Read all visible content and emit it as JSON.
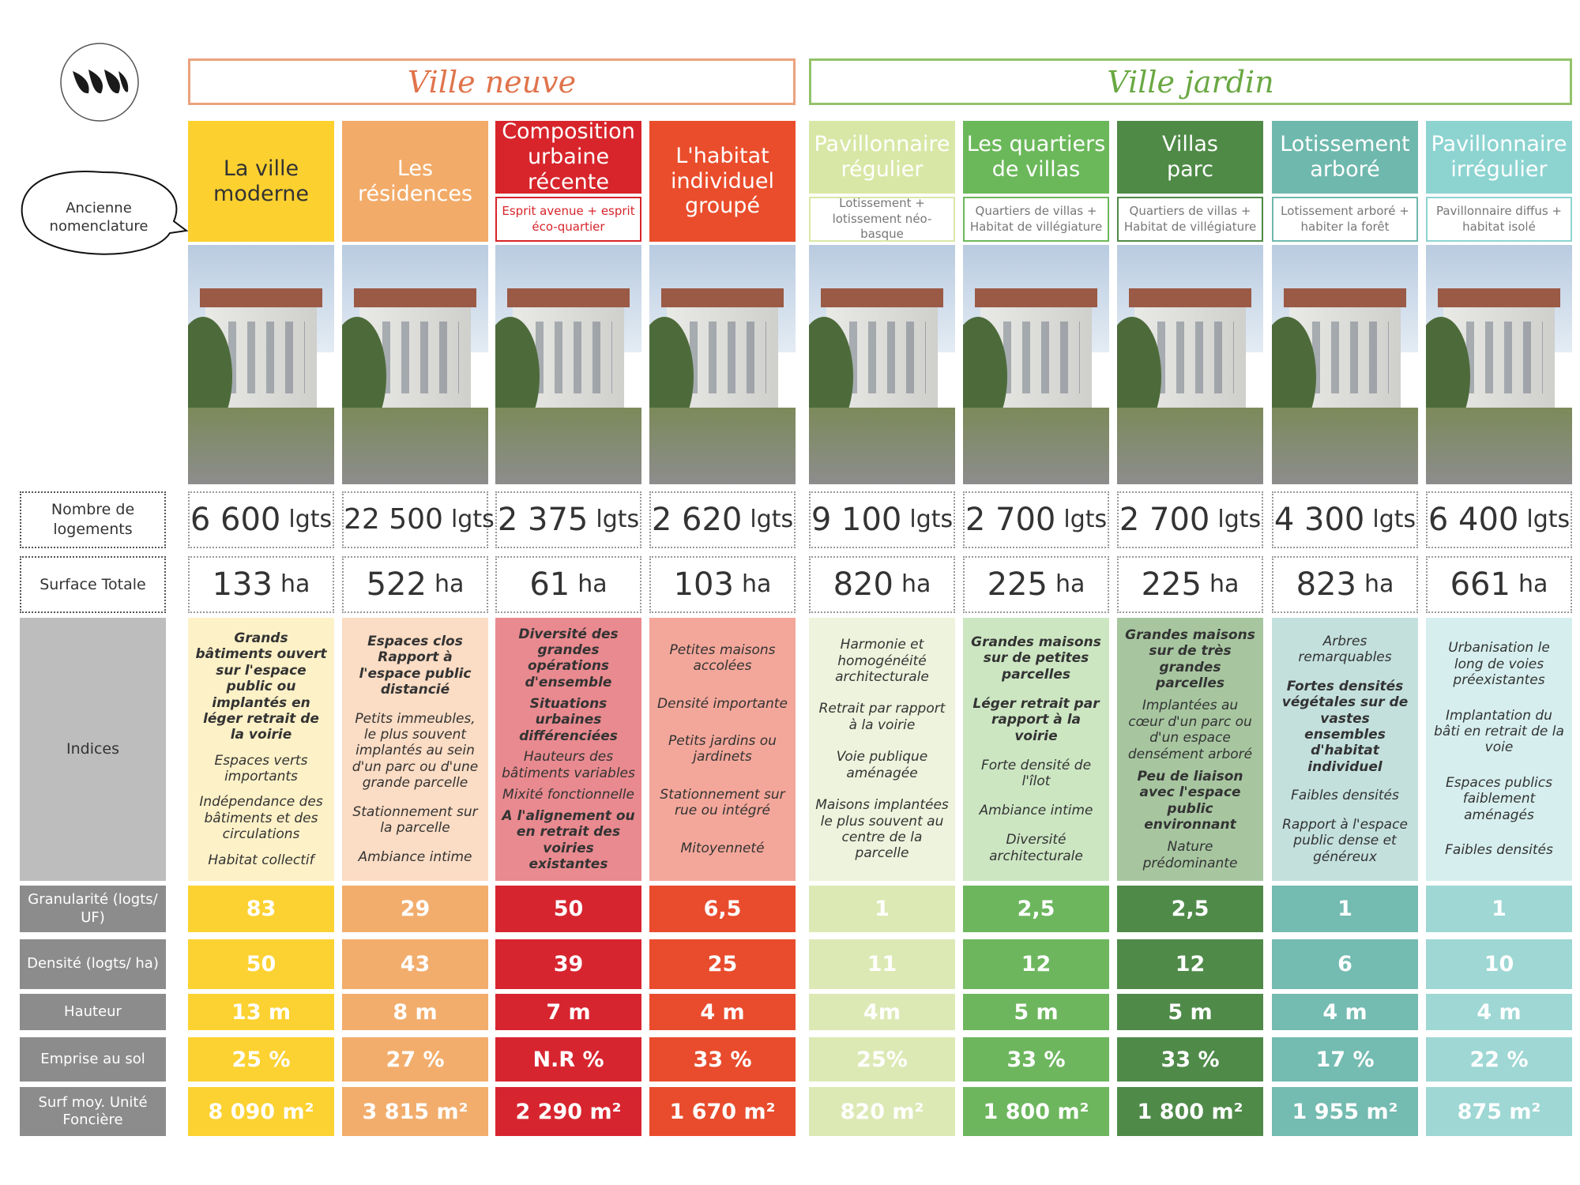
{
  "legend_bubble": "Ancienne nomenclature",
  "row_labels": [
    "Nombre de logements",
    "Surface Totale",
    "Indices",
    "Granularité (logts/ UF)",
    "Densité (logts/ ha)",
    "Hauteur",
    "Emprise au sol",
    "Surf moy. Unité Foncière"
  ],
  "groups": [
    {
      "title": "Ville neuve",
      "color": "#e0744c",
      "border": "#eba27e",
      "columns": [
        {
          "name": "La ville\nmoderne",
          "header_color": "#fcd12f",
          "name_color": "#333333",
          "light": "#fdf1c7",
          "metric_color": "#fcd232",
          "logements": "6 600",
          "logements_unit": "lgts",
          "surface": "133",
          "surface_unit": "ha",
          "indices": [
            {
              "text": "Grands bâtiments ouvert sur l'espace public ou implantés en léger retrait de la voirie",
              "bold": true
            },
            {
              "text": "Espaces verts importants",
              "bold": false
            },
            {
              "text": "Indépendance des bâtiments et des circulations",
              "bold": false
            },
            {
              "text": "Habitat collectif",
              "bold": false
            }
          ],
          "metrics": [
            "83",
            "50",
            "13 m",
            "25 %",
            "8 090 m²"
          ]
        },
        {
          "name": "Les\nrésidences",
          "header_color": "#f2ab68",
          "name_color": "#ffffff",
          "light": "#fbdcc4",
          "metric_color": "#f2ad6c",
          "logements": "22 500",
          "logements_unit": "lgts",
          "surface": "522",
          "surface_unit": "ha",
          "indices": [
            {
              "text": "Espaces clos Rapport à l'espace public distancié",
              "bold": true
            },
            {
              "text": "Petits immeubles, le plus souvent implantés au sein d'un parc ou d'une grande parcelle",
              "bold": false
            },
            {
              "text": "Stationnement sur la parcelle",
              "bold": false
            },
            {
              "text": "Ambiance intime",
              "bold": false
            }
          ],
          "metrics": [
            "29",
            "43",
            "8 m",
            "27 %",
            "3 815 m²"
          ]
        },
        {
          "name": "Composition\nurbaine\nrécente",
          "subtitle": "Esprit avenue + esprit éco-quartier",
          "header_color": "#d7252b",
          "name_color": "#ffffff",
          "light": "#e88a8f",
          "metric_color": "#d72530",
          "logements": "2 375",
          "logements_unit": "lgts",
          "surface": "61",
          "surface_unit": "ha",
          "indices": [
            {
              "text": "Diversité des grandes opérations d'ensemble",
              "bold": true
            },
            {
              "text": "Situations urbaines différenciées",
              "bold": true
            },
            {
              "text": "Hauteurs des bâtiments variables",
              "bold": false
            },
            {
              "text": "Mixité fonctionnelle",
              "bold": false
            },
            {
              "text": "A l'alignement ou en retrait des voiries existantes",
              "bold": true
            }
          ],
          "metrics": [
            "50",
            "39",
            "7 m",
            "N.R %",
            "2 290 m²"
          ]
        },
        {
          "name": "L'habitat\nindividuel\ngroupé",
          "header_color": "#ea4d2c",
          "name_color": "#ffffff",
          "light": "#f3a79a",
          "metric_color": "#e84c2d",
          "logements": "2 620",
          "logements_unit": "lgts",
          "surface": "103",
          "surface_unit": "ha",
          "indices": [
            {
              "text": "Petites maisons accolées",
              "bold": false
            },
            {
              "text": "Densité importante",
              "bold": false
            },
            {
              "text": "Petits jardins ou jardinets",
              "bold": false
            },
            {
              "text": "Stationnement sur rue ou intégré",
              "bold": false
            },
            {
              "text": "Mitoyenneté",
              "bold": false
            }
          ],
          "metrics": [
            "6,5",
            "25",
            "4 m",
            "33 %",
            "1 670 m²"
          ]
        }
      ]
    },
    {
      "title": "Ville jardin",
      "color": "#6aa843",
      "border": "#93c26a",
      "columns": [
        {
          "name": "Pavillonnaire\nrégulier",
          "subtitle": "Lotissement + lotissement néo-basque",
          "header_color": "#d9e7a6",
          "name_color": "#ffffff",
          "light": "#edf3dc",
          "metric_color": "#dde9b5",
          "logements": "9 100",
          "logements_unit": "lgts",
          "surface": "820",
          "surface_unit": "ha",
          "indices": [
            {
              "text": "Harmonie et homogénéité architecturale",
              "bold": false
            },
            {
              "text": "Retrait par rapport à la voirie",
              "bold": false
            },
            {
              "text": "Voie publique aménagée",
              "bold": false
            },
            {
              "text": "Maisons implantées le plus souvent au centre de la parcelle",
              "bold": false
            }
          ],
          "metrics": [
            "1",
            "11",
            "4m",
            "25%",
            "820 m²"
          ]
        },
        {
          "name": "Les quartiers\nde villas",
          "subtitle": "Quartiers de villas + Habitat de villégiature",
          "header_color": "#6bb85a",
          "name_color": "#ffffff",
          "light": "#cce6c2",
          "metric_color": "#6db65e",
          "logements": "2 700",
          "logements_unit": "lgts",
          "surface": "225",
          "surface_unit": "ha",
          "indices": [
            {
              "text": "Grandes maisons sur de petites parcelles",
              "bold": true
            },
            {
              "text": "Léger retrait par rapport à la voirie",
              "bold": true
            },
            {
              "text": "Forte densité de l'îlot",
              "bold": false
            },
            {
              "text": "Ambiance intime",
              "bold": false
            },
            {
              "text": "Diversité architecturale",
              "bold": false
            }
          ],
          "metrics": [
            "2,5",
            "12",
            "5 m",
            "33 %",
            "1 800 m²"
          ]
        },
        {
          "name": "Villas\nparc",
          "subtitle": "Quartiers de villas + Habitat de villégiature",
          "header_color": "#4f8a46",
          "name_color": "#ffffff",
          "light": "#a7c6a0",
          "metric_color": "#4f8a49",
          "logements": "2 700",
          "logements_unit": "lgts",
          "surface": "225",
          "surface_unit": "ha",
          "indices": [
            {
              "text": "Grandes maisons sur de très grandes parcelles",
              "bold": true
            },
            {
              "text": "Implantées au cœur d'un parc ou d'un espace densément arboré",
              "bold": false
            },
            {
              "text": "Peu de liaison avec l'espace public environnant",
              "bold": true
            },
            {
              "text": "Nature prédominante",
              "bold": false
            }
          ],
          "metrics": [
            "2,5",
            "12",
            "5 m",
            "33 %",
            "1 800 m²"
          ]
        },
        {
          "name": "Lotissement\narboré",
          "subtitle": "Lotissement arboré + habiter la forêt",
          "header_color": "#6fb8ad",
          "name_color": "#ffffff",
          "light": "#c3e0dc",
          "metric_color": "#74bbb1",
          "logements": "4 300",
          "logements_unit": "lgts",
          "surface": "823",
          "surface_unit": "ha",
          "indices": [
            {
              "text": "Arbres remarquables",
              "bold": false
            },
            {
              "text": "Fortes densités végétales sur de vastes ensembles d'habitat individuel",
              "bold": true
            },
            {
              "text": "Faibles densités",
              "bold": false
            },
            {
              "text": "Rapport à l'espace public dense et généreux",
              "bold": false
            }
          ],
          "metrics": [
            "1",
            "6",
            "4 m",
            "17 %",
            "1 955 m²"
          ]
        },
        {
          "name": "Pavillonnaire\nirrégulier",
          "subtitle": "Pavillonnaire diffus + habitat isolé",
          "header_color": "#8dd4d1",
          "name_color": "#ffffff",
          "light": "#d6efee",
          "metric_color": "#9ed7d4",
          "logements": "6 400",
          "logements_unit": "lgts",
          "surface": "661",
          "surface_unit": "ha",
          "indices": [
            {
              "text": "Urbanisation le long de voies préexistantes",
              "bold": false
            },
            {
              "text": "Implantation du bâti en retrait de la voie",
              "bold": false
            },
            {
              "text": "Espaces publics faiblement aménagés",
              "bold": false
            },
            {
              "text": "Faibles densités",
              "bold": false
            }
          ],
          "metrics": [
            "1",
            "10",
            "4 m",
            "22 %",
            "875 m²"
          ]
        }
      ]
    }
  ]
}
